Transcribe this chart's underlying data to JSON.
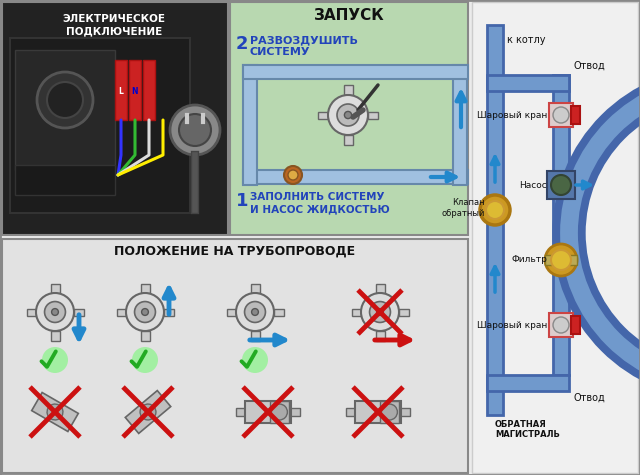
{
  "bg_color": "#ebebeb",
  "panel_tl_bg": "#1a1a1a",
  "panel_tc_bg": "#b8d8b0",
  "panel_bot_bg": "#e0e0e0",
  "panel_right_bg": "#f5f5f5",
  "pipe_color": "#7099cc",
  "pipe_dark": "#4466aa",
  "pipe_light": "#aabbdd",
  "arrow_blue": "#2288cc",
  "arrow_red": "#cc1111",
  "green_check": "#22aa22",
  "red_cross": "#cc1111",
  "valve_gold": "#cc9922",
  "valve_gold2": "#ddbb33",
  "title_tl": "ЭЛЕКТРИЧЕСКОЕ\nПОДКЛЮЧЕНИЕ",
  "title_tc": "ЗАПУСК",
  "title_bot": "ПОЛОЖЕНИЕ НА ТРУБОПРОВОДЕ",
  "step2_text": "РАЗВОЗДУШИТЬ\nСИСТЕМУ",
  "step1_text": "ЗАПОЛНИТЬ СИСТЕМУ\nИ НАСОС ЖИДКОСТЬЮ",
  "label_kotlu": "к котлу",
  "label_otvod": "Отвод",
  "label_shar1": "Шаровый кран",
  "label_nasos": "Насос",
  "label_filtr": "Фильтр",
  "label_shar2": "Шаровый кран",
  "label_otvod2": "Отвод",
  "label_obratn": "ОБРАТНАЯ\nМАГИСТРАЛЬ",
  "label_klapan": "Клапан\nобратный"
}
